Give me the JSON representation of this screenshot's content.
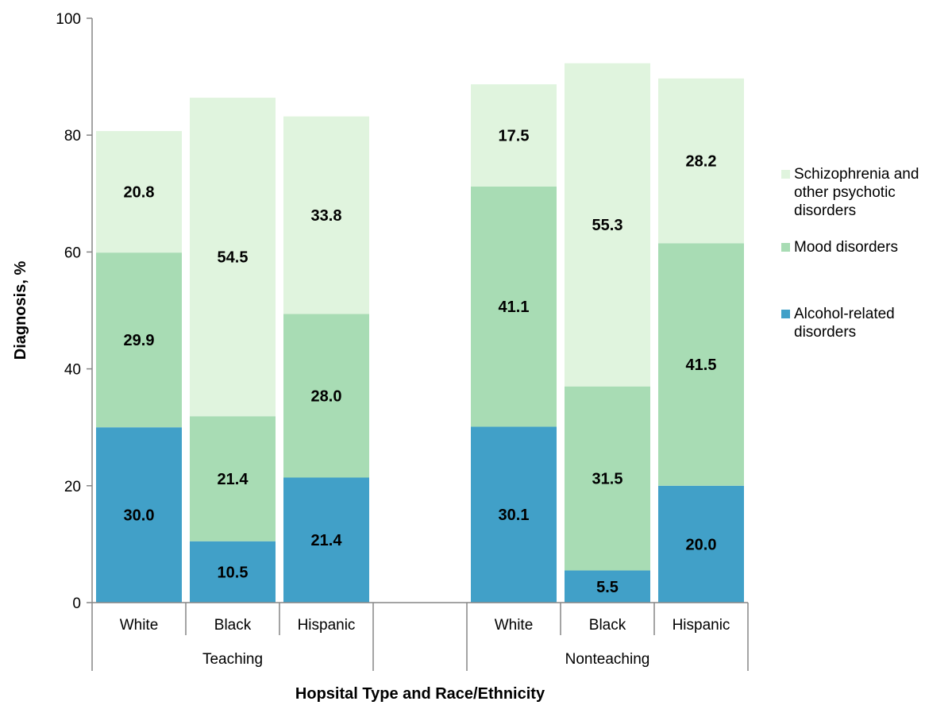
{
  "chart_data": {
    "type": "bar",
    "stacked": true,
    "title": "",
    "ylabel": "Diagnosis, %",
    "xlabel": "Hopsital Type and Race/Ethnicity",
    "ylim": [
      0,
      100
    ],
    "yticks": [
      0,
      20,
      40,
      60,
      80,
      100
    ],
    "groups": [
      {
        "name": "Teaching",
        "categories": [
          "White",
          "Black",
          "Hispanic"
        ]
      },
      {
        "name": "Nonteaching",
        "categories": [
          "White",
          "Black",
          "Hispanic"
        ]
      }
    ],
    "series": [
      {
        "name": "Alcohol-related disorders",
        "legend_lines": [
          "Alcohol-related",
          "disorders"
        ],
        "color": "#41A0C8",
        "values": [
          30.0,
          10.5,
          21.4,
          30.1,
          5.5,
          20.0
        ]
      },
      {
        "name": "Mood disorders",
        "legend_lines": [
          "Mood disorders"
        ],
        "color": "#A8DCB4",
        "values": [
          29.9,
          21.4,
          28.0,
          41.1,
          31.5,
          41.5
        ]
      },
      {
        "name": "Schizophrenia and other psychotic disorders",
        "legend_lines": [
          "Schizophrenia and",
          "other psychotic",
          "disorders"
        ],
        "color": "#E0F4DE",
        "values": [
          20.8,
          54.5,
          33.8,
          17.5,
          55.3,
          28.2
        ]
      }
    ],
    "data_labels": [
      [
        "30.0",
        "10.5",
        "21.4",
        "30.1",
        "5.5",
        "20.0"
      ],
      [
        "29.9",
        "21.4",
        "28.0",
        "41.1",
        "31.5",
        "41.5"
      ],
      [
        "20.8",
        "54.5",
        "33.8",
        "17.5",
        "55.3",
        "28.2"
      ]
    ],
    "legend_position": "right",
    "grid": false,
    "axis_color": "#868686"
  }
}
